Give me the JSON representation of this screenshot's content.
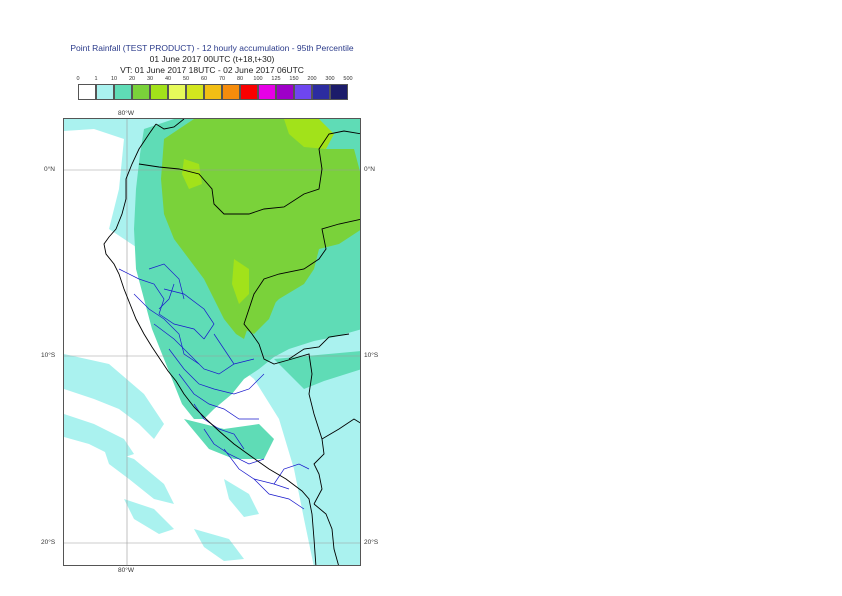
{
  "title": {
    "line1": "Point Rainfall (TEST PRODUCT) - 12 hourly accumulation - 95th Percentile",
    "line2": "01 June 2017 00UTC (t+18,t+30)",
    "line3": "VT: 01 June 2017 18UTC - 02 June 2017 06UTC"
  },
  "legend": {
    "labels": [
      "0",
      "1",
      "10",
      "20",
      "30",
      "40",
      "50",
      "60",
      "70",
      "80",
      "100",
      "125",
      "150",
      "200",
      "300",
      "500"
    ],
    "colors": [
      "#ffffff",
      "#aaf2ef",
      "#5fdcb6",
      "#7ad23a",
      "#a2e21a",
      "#e6fa5a",
      "#d2e61e",
      "#f2be14",
      "#f68c0c",
      "#fa0000",
      "#e600e6",
      "#9e00c8",
      "#6e46f0",
      "#2c2ca0",
      "#1c1c6a"
    ]
  },
  "axes": {
    "lon_top": "80°W",
    "lon_bottom": "80°W",
    "lat_left": [
      "0°N",
      "10°S",
      "20°S"
    ],
    "lat_right": [
      "0°N",
      "10°S",
      "20°S"
    ]
  },
  "map_colors": {
    "ocean": "#ffffff",
    "light_cyan": "#aaf2ef",
    "teal": "#5fdcb6",
    "green": "#7ad23a",
    "lime": "#a2e21a",
    "grid": "#999999",
    "country_border": "#000000",
    "region_border": "#1a1acc"
  }
}
